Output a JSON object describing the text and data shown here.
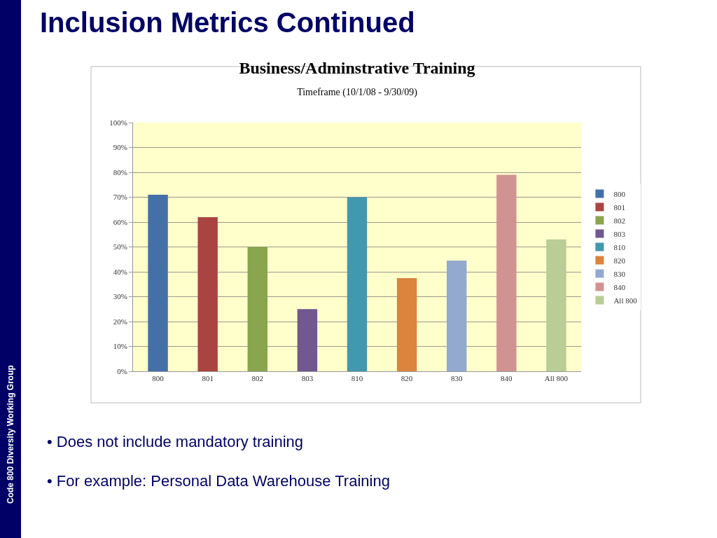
{
  "chart_data": {
    "type": "bar",
    "title": "Business/Adminstrative Training",
    "subtitle": "Timeframe (10/1/08 - 9/30/09)",
    "categories": [
      "800",
      "801",
      "802",
      "803",
      "810",
      "820",
      "830",
      "840",
      "All 800"
    ],
    "series": [
      {
        "name": "800",
        "color": "#4470a8",
        "values": [
          71,
          null,
          null,
          null,
          null,
          null,
          null,
          null,
          null
        ]
      },
      {
        "name": "801",
        "color": "#aa4442",
        "values": [
          null,
          62,
          null,
          null,
          null,
          null,
          null,
          null,
          null
        ]
      },
      {
        "name": "802",
        "color": "#89a54e",
        "values": [
          null,
          null,
          50,
          null,
          null,
          null,
          null,
          null,
          null
        ]
      },
      {
        "name": "803",
        "color": "#71588f",
        "values": [
          null,
          null,
          null,
          25,
          null,
          null,
          null,
          null,
          null
        ]
      },
      {
        "name": "810",
        "color": "#4198af",
        "values": [
          null,
          null,
          null,
          null,
          70,
          null,
          null,
          null,
          null
        ]
      },
      {
        "name": "820",
        "color": "#db843d",
        "values": [
          null,
          null,
          null,
          null,
          null,
          37.5,
          null,
          null,
          null
        ]
      },
      {
        "name": "830",
        "color": "#93a9cf",
        "values": [
          null,
          null,
          null,
          null,
          null,
          null,
          44.5,
          null,
          null
        ]
      },
      {
        "name": "840",
        "color": "#d19392",
        "values": [
          null,
          null,
          null,
          null,
          null,
          null,
          null,
          79,
          null
        ]
      },
      {
        "name": "All 800",
        "color": "#b9cd96",
        "values": [
          null,
          null,
          null,
          null,
          null,
          null,
          null,
          null,
          53
        ]
      }
    ],
    "ylim": [
      0,
      100
    ],
    "yticks": [
      {
        "value": 0,
        "label": "0%"
      },
      {
        "value": 10,
        "label": "10%"
      },
      {
        "value": 20,
        "label": "20%"
      },
      {
        "value": 30,
        "label": "30%"
      },
      {
        "value": 40,
        "label": "40%"
      },
      {
        "value": 50,
        "label": "50%"
      },
      {
        "value": 60,
        "label": "60%"
      },
      {
        "value": 70,
        "label": "70%"
      },
      {
        "value": 80,
        "label": "80%"
      },
      {
        "value": 90,
        "label": "90%"
      },
      {
        "value": 100,
        "label": "100%"
      }
    ],
    "grid": "y",
    "legend": "right",
    "annotations": [
      "Inclusion Metrics Continued",
      "• Does not include mandatory training",
      "• For example: Personal Data Warehouse Training",
      "Code 800 Diversity Working Group"
    ]
  }
}
